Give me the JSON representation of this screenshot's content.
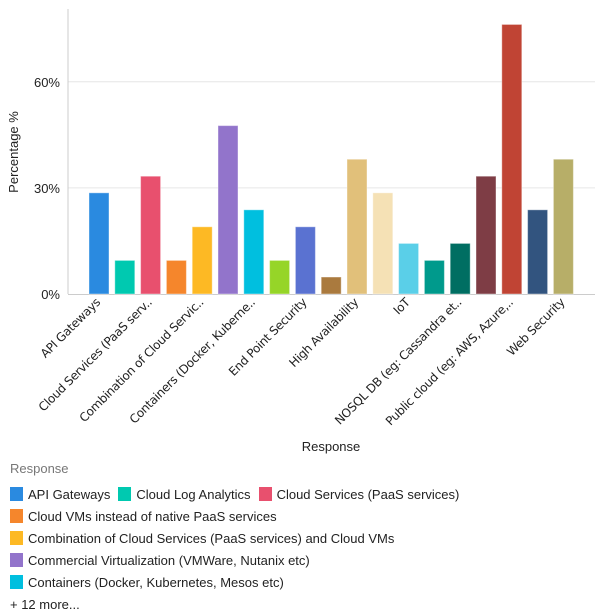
{
  "chart_data": {
    "type": "bar",
    "ylabel": "Percentage %",
    "xlabel": "Response",
    "ylim": [
      0,
      80
    ],
    "yticks": [
      0,
      30,
      60
    ],
    "ytick_labels": [
      "0%",
      "30%",
      "60%"
    ],
    "grid": true,
    "legend_placement": "bottom",
    "tick_labels": [
      "API Gateways",
      "",
      "Cloud Services (PaaS serv..",
      "",
      "Combination of Cloud Servic..",
      "",
      "Containers (Docker, Kuberne..",
      "",
      "End Point Security",
      "",
      "High Availability",
      "",
      "IoT",
      "",
      "NOSQL DB (eg: Cassandra et..",
      "",
      "Public cloud (eg: AWS, Azure,..",
      "",
      "Web Security"
    ],
    "values": [
      28.6,
      9.5,
      33.3,
      9.5,
      19.0,
      47.6,
      23.8,
      9.5,
      19.0,
      4.8,
      38.1,
      28.6,
      14.3,
      9.5,
      14.3,
      33.3,
      76.2,
      23.8,
      38.1
    ],
    "colors": [
      "#2a8ae0",
      "#00c9b0",
      "#e8506e",
      "#f5862c",
      "#fdb924",
      "#9274cb",
      "#00bfdf",
      "#96d528",
      "#5a72d1",
      "#aa7a3e",
      "#e1c07a",
      "#f5e1b5",
      "#5acfe8",
      "#009a8c",
      "#006e62",
      "#7e3d45",
      "#c04434",
      "#32547f",
      "#b7ae68"
    ]
  },
  "legend": {
    "title": "Response",
    "rows": [
      [
        {
          "label": "API Gateways",
          "color": "#2a8ae0"
        },
        {
          "label": "Cloud Log Analytics",
          "color": "#00c9b0"
        },
        {
          "label": "Cloud Services (PaaS services)",
          "color": "#e8506e"
        }
      ],
      [
        {
          "label": "Cloud VMs instead of native PaaS services",
          "color": "#f5862c"
        }
      ],
      [
        {
          "label": "Combination of Cloud Services (PaaS services) and Cloud VMs",
          "color": "#fdb924"
        }
      ],
      [
        {
          "label": "Commercial Virtualization (VMWare, Nutanix etc)",
          "color": "#9274cb"
        },
        {
          "label": "Containers (Docker, Kubernetes, Mesos etc)",
          "color": "#00bfdf"
        }
      ]
    ],
    "more": "+ 12 more..."
  }
}
